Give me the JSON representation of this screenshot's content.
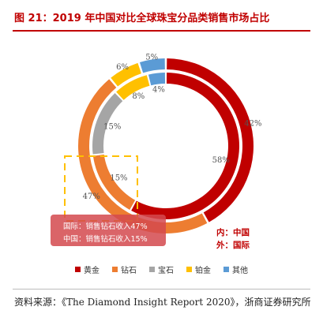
{
  "title": "图 21：2019 年中国对比全球珠宝分品类销售市场占比",
  "chart_data": {
    "type": "pie",
    "variant": "nested-donut",
    "categories": [
      "黄金",
      "钻石",
      "宝石",
      "铂金",
      "其他"
    ],
    "colors": [
      "#c00000",
      "#ed7d31",
      "#a5a5a5",
      "#ffc000",
      "#5b9bd5"
    ],
    "series": [
      {
        "name": "国际",
        "ring": "outer",
        "values": [
          42,
          47,
          0,
          6,
          5
        ],
        "labels": [
          "42%",
          "47%",
          "",
          "6%",
          "5%"
        ]
      },
      {
        "name": "中国",
        "ring": "inner",
        "values": [
          58,
          15,
          15,
          8,
          4
        ],
        "labels": [
          "58%",
          "15%",
          "15%",
          "8%",
          "4%"
        ]
      }
    ],
    "legend_position": "bottom"
  },
  "callout": {
    "line1": "国际：销售钻石收入47%",
    "line2": "中国：销售钻石收入15%"
  },
  "ring_note": {
    "inner": "内：中国",
    "outer": "外：国际"
  },
  "source": "资料来源：《The Diamond Insight Report 2020》，浙商证券研究所"
}
